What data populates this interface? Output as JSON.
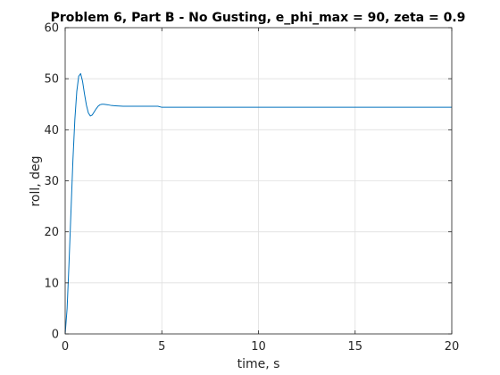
{
  "chart_data": {
    "type": "line",
    "title": "Problem 6, Part B - No Gusting, e_phi_max = 90, zeta = 0.9",
    "xlabel": "time, s",
    "ylabel": "roll, deg",
    "xlim": [
      0,
      20
    ],
    "ylim": [
      0,
      60
    ],
    "x_ticks": [
      0,
      5,
      10,
      15,
      20
    ],
    "y_ticks": [
      0,
      10,
      20,
      30,
      40,
      50,
      60
    ],
    "x_tick_labels": [
      "0",
      "5",
      "10",
      "15",
      "20"
    ],
    "y_tick_labels": [
      "0",
      "10",
      "20",
      "30",
      "40",
      "50",
      "60"
    ],
    "grid": true,
    "series": [
      {
        "color": "#0072BD",
        "x": [
          0,
          0.1,
          0.2,
          0.3,
          0.4,
          0.5,
          0.6,
          0.7,
          0.8,
          0.9,
          1.0,
          1.1,
          1.2,
          1.3,
          1.4,
          1.5,
          1.6,
          1.7,
          1.8,
          1.9,
          2.0,
          2.2,
          2.4,
          2.6,
          2.8,
          3.0,
          3.5,
          4.0,
          4.5,
          4.8,
          5.0,
          6,
          8,
          10,
          12,
          14,
          16,
          18,
          20
        ],
        "y": [
          0,
          5,
          14,
          24,
          34,
          42,
          47.5,
          50.5,
          51,
          49.5,
          47,
          44.8,
          43.3,
          42.7,
          42.9,
          43.5,
          44.1,
          44.6,
          44.9,
          45.0,
          45.0,
          44.9,
          44.75,
          44.7,
          44.65,
          44.6,
          44.6,
          44.6,
          44.6,
          44.6,
          44.4,
          44.4,
          44.4,
          44.4,
          44.4,
          44.4,
          44.4,
          44.4,
          44.4
        ]
      }
    ]
  }
}
